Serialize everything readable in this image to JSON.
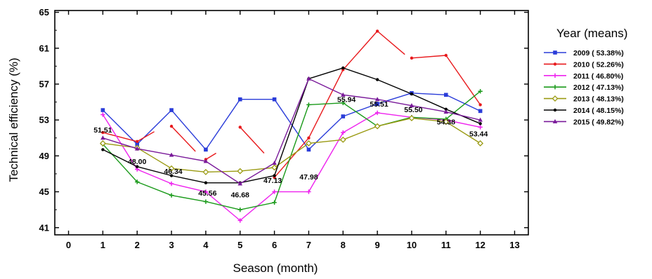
{
  "chart_data": {
    "type": "line",
    "xlabel": "Season (month)",
    "ylabel": "Technical efficiency (%)",
    "xlim": [
      -0.4,
      13.4
    ],
    "ylim": [
      40.2,
      65.2
    ],
    "xticks": [
      0,
      1,
      2,
      3,
      4,
      5,
      6,
      7,
      8,
      9,
      10,
      11,
      12,
      13
    ],
    "yticks": [
      41,
      45,
      49,
      53,
      57,
      61,
      65
    ],
    "legend": {
      "title": "Year (means)",
      "position": "right"
    },
    "series": [
      {
        "name": "2009 ( 53.38%)",
        "color": "#2a3cd9",
        "marker": "square",
        "segments": [
          [
            [
              1,
              54.1
            ],
            [
              2,
              50.3
            ],
            [
              3,
              54.1
            ],
            [
              4,
              49.7
            ],
            [
              5,
              55.3
            ],
            [
              6,
              55.3
            ],
            [
              7,
              49.7
            ],
            [
              8,
              53.4
            ],
            [
              9,
              54.8
            ],
            [
              10,
              56.0
            ],
            [
              11,
              55.8
            ],
            [
              12,
              54.0
            ]
          ]
        ]
      },
      {
        "name": "2010 ( 52.26%)",
        "color": "#e8191c",
        "marker": "dot",
        "segments": [
          [
            [
              1,
              51.6
            ],
            [
              2,
              50.6
            ],
            [
              2.5,
              51.7
            ]
          ],
          [
            [
              3,
              52.3
            ],
            [
              3.7,
              49.5
            ]
          ],
          [
            [
              4,
              48.6
            ],
            [
              4.3,
              49.3
            ]
          ],
          [
            [
              5,
              52.2
            ],
            [
              5.7,
              49.3
            ]
          ],
          [
            [
              6,
              46.6
            ],
            [
              7,
              51.0
            ],
            [
              8,
              58.6
            ],
            [
              9,
              62.9
            ],
            [
              9.8,
              60.3
            ]
          ],
          [
            [
              10,
              59.9
            ],
            [
              11,
              60.2
            ],
            [
              12,
              54.7
            ]
          ]
        ]
      },
      {
        "name": "2011 ( 46.80%)",
        "color": "#ee22ee",
        "marker": "plus",
        "segments": [
          [
            [
              1,
              53.6
            ],
            [
              2,
              47.5
            ],
            [
              3,
              45.9
            ],
            [
              4,
              45.0
            ],
            [
              5,
              41.8
            ],
            [
              6,
              45.0
            ],
            [
              7,
              45.0
            ],
            [
              8,
              51.6
            ],
            [
              9,
              53.8
            ],
            [
              10,
              53.3
            ],
            [
              11,
              53.0
            ],
            [
              12,
              52.2
            ]
          ]
        ]
      },
      {
        "name": "2012 ( 47.13%)",
        "color": "#1a9a1a",
        "marker": "plus",
        "segments": [
          [
            [
              1,
              50.3
            ],
            [
              2,
              46.1
            ],
            [
              3,
              44.6
            ],
            [
              4,
              43.9
            ],
            [
              5,
              43.0
            ],
            [
              6,
              43.8
            ],
            [
              7,
              54.7
            ],
            [
              8,
              54.9
            ],
            [
              9,
              52.3
            ],
            [
              10,
              53.3
            ],
            [
              11,
              53.1
            ],
            [
              12,
              56.2
            ]
          ]
        ]
      },
      {
        "name": "2013 ( 48.13%)",
        "color": "#9a9a12",
        "marker": "diamond",
        "segments": [
          [
            [
              1,
              50.4
            ],
            [
              2,
              49.9
            ],
            [
              3,
              47.6
            ],
            [
              4,
              47.2
            ],
            [
              5,
              47.3
            ],
            [
              6,
              47.7
            ],
            [
              7,
              50.4
            ],
            [
              8,
              50.8
            ],
            [
              9,
              52.3
            ],
            [
              10,
              53.2
            ],
            [
              11,
              52.8
            ],
            [
              12,
              50.4
            ]
          ]
        ]
      },
      {
        "name": "2014 ( 48.15%)",
        "color": "#000000",
        "marker": "dot",
        "segments": [
          [
            [
              1,
              49.7
            ],
            [
              2,
              47.8
            ],
            [
              3,
              46.8
            ],
            [
              4,
              46.0
            ],
            [
              5,
              46.0
            ],
            [
              6,
              46.8
            ],
            [
              7,
              57.6
            ],
            [
              8,
              58.8
            ],
            [
              9,
              57.5
            ],
            [
              10,
              55.9
            ],
            [
              11,
              54.2
            ],
            [
              12,
              52.6
            ]
          ]
        ]
      },
      {
        "name": "2015 ( 49.82%)",
        "color": "#7a1a9a",
        "marker": "triangle",
        "segments": [
          [
            [
              1,
              51.0
            ],
            [
              2,
              49.8
            ],
            [
              3,
              49.1
            ],
            [
              4,
              48.4
            ],
            [
              5,
              45.9
            ],
            [
              6,
              48.2
            ],
            [
              7,
              57.6
            ],
            [
              8,
              55.8
            ],
            [
              9,
              55.3
            ],
            [
              10,
              54.6
            ],
            [
              11,
              53.9
            ],
            [
              12,
              53.0
            ]
          ]
        ]
      }
    ],
    "annotations": [
      {
        "text": "51.51",
        "x": 1.0,
        "y": 51.9
      },
      {
        "text": "48.00",
        "x": 2.0,
        "y": 48.4
      },
      {
        "text": "46.34",
        "x": 3.05,
        "y": 47.3
      },
      {
        "text": "45.56",
        "x": 4.05,
        "y": 44.9
      },
      {
        "text": "46.68",
        "x": 5.0,
        "y": 44.7
      },
      {
        "text": "47.13",
        "x": 5.95,
        "y": 46.3
      },
      {
        "text": "47.98",
        "x": 7.0,
        "y": 46.7
      },
      {
        "text": "55.94",
        "x": 8.1,
        "y": 55.3
      },
      {
        "text": "55.51",
        "x": 9.05,
        "y": 54.8
      },
      {
        "text": "55.50",
        "x": 10.05,
        "y": 54.2
      },
      {
        "text": "54.38",
        "x": 11.0,
        "y": 52.8
      },
      {
        "text": "53.44",
        "x": 11.95,
        "y": 51.5
      }
    ]
  }
}
